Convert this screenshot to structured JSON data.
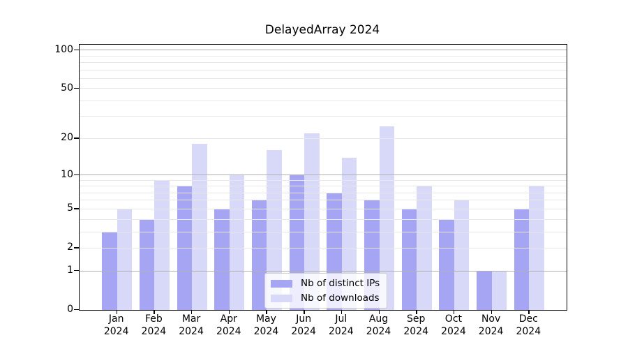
{
  "chart_data": {
    "type": "bar",
    "title": "DelayedArray 2024",
    "categories": [
      "Jan",
      "Feb",
      "Mar",
      "Apr",
      "May",
      "Jun",
      "Jul",
      "Aug",
      "Sep",
      "Oct",
      "Nov",
      "Dec"
    ],
    "year": "2024",
    "series": [
      {
        "name": "Nb of distinct IPs",
        "color": "#a5a5f3",
        "values": [
          3,
          4,
          8,
          5,
          6,
          10,
          7,
          6,
          5,
          4,
          1,
          5
        ]
      },
      {
        "name": "Nb of downloads",
        "color": "#d8d8f8",
        "values": [
          5,
          9,
          18,
          10,
          16,
          22,
          14,
          25,
          8,
          6,
          1,
          8
        ]
      }
    ],
    "xlabel": "",
    "ylabel": "",
    "yscale": "log1p",
    "ylim": [
      0,
      110
    ],
    "yticks": [
      0,
      1,
      2,
      5,
      10,
      20,
      50,
      100
    ],
    "major_gridlines": [
      1,
      10,
      100
    ],
    "minor_gridlines": [
      2,
      3,
      4,
      5,
      6,
      7,
      8,
      9,
      20,
      30,
      40,
      50,
      60,
      70,
      80,
      90
    ],
    "grid": "on",
    "legend_position": "lower center inside plot",
    "colors": {
      "background": "#ffffff",
      "axis": "#000000",
      "major_grid": "#b0b0b0",
      "minor_grid": "#e8e8e8",
      "legend_background": "#ffffff",
      "legend_border": "#cccccc",
      "text": "#000000"
    }
  }
}
